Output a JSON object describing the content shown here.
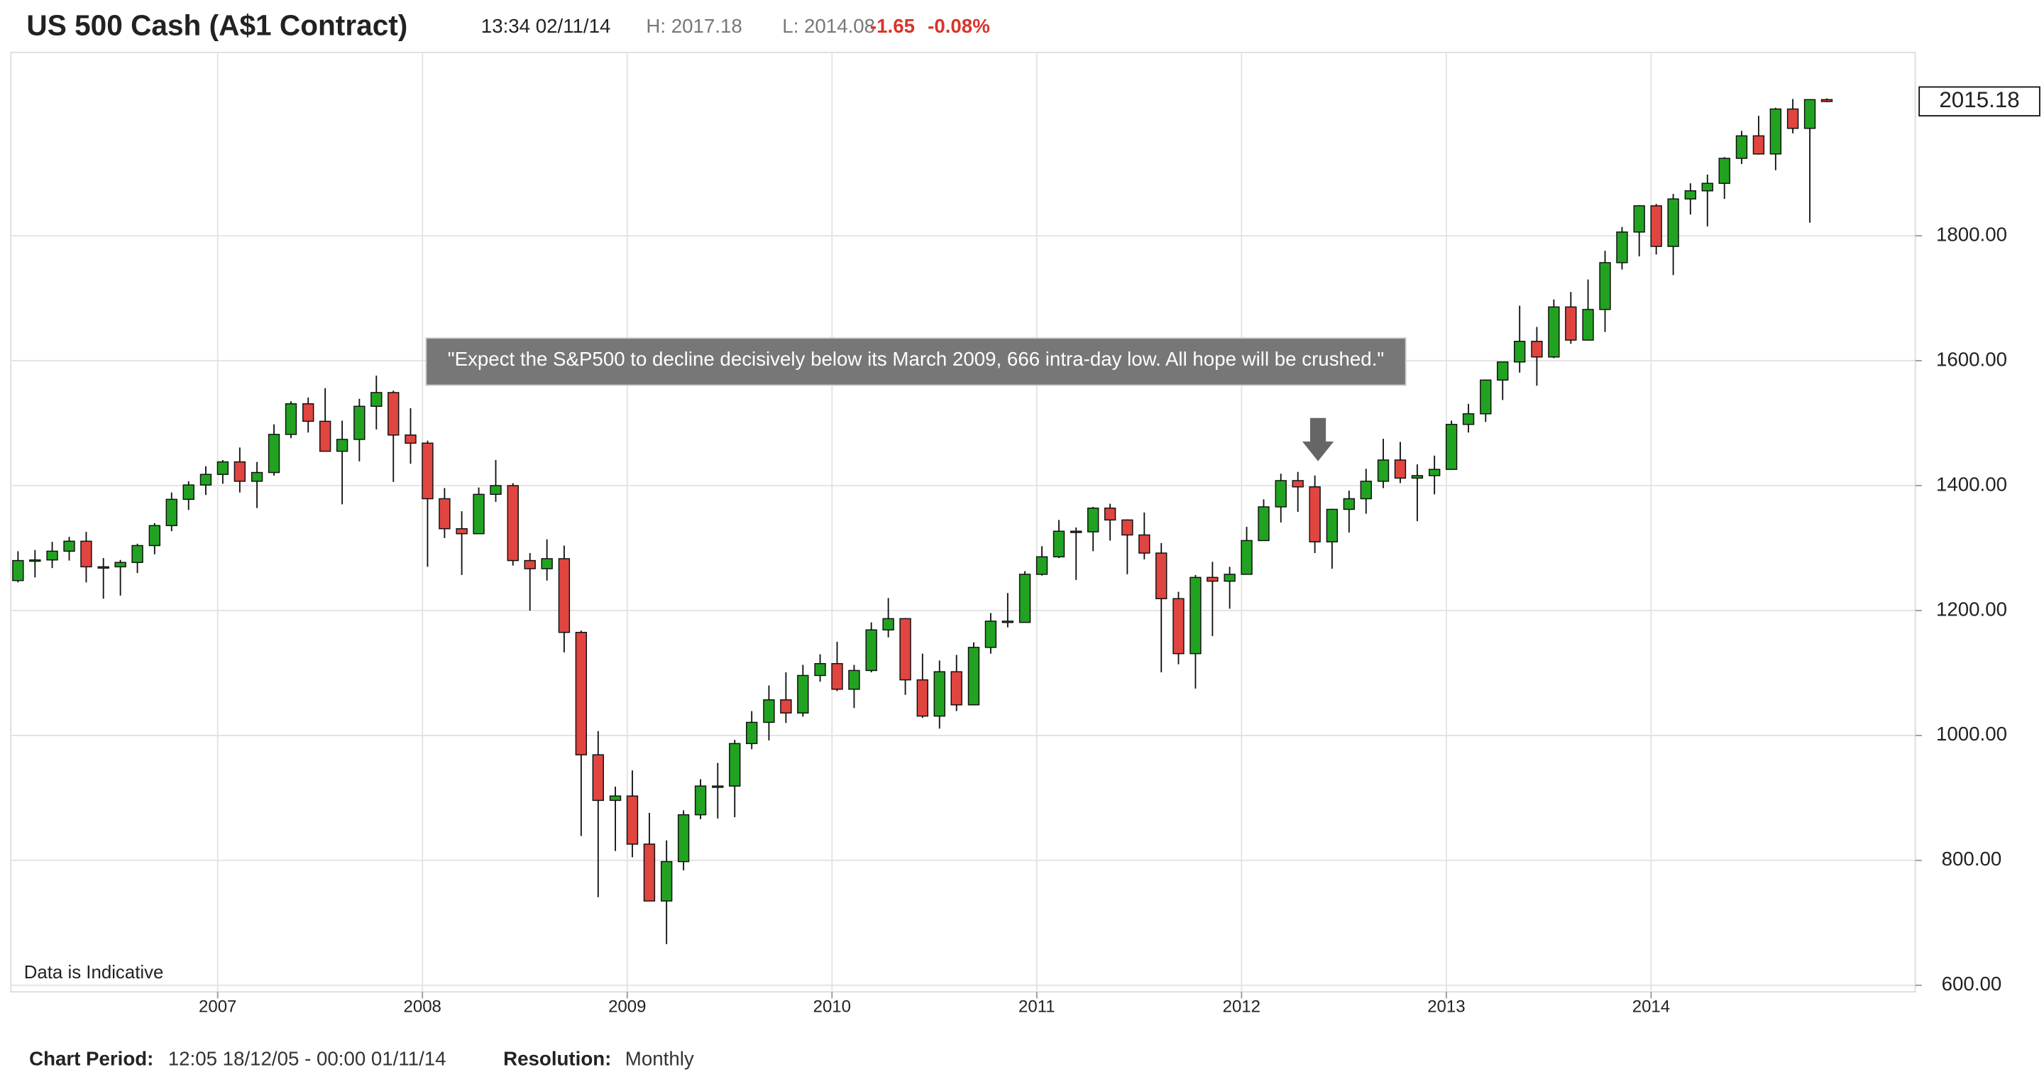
{
  "header": {
    "title": "US 500 Cash (A$1 Contract)",
    "time": "13:34 02/11/14",
    "high": "H: 2017.18",
    "low": "L: 2014.08",
    "change": "-1.65",
    "change_pct": "-0.08%"
  },
  "chart_data": {
    "type": "candlestick",
    "note": "Data is Indicative",
    "annotation": "\"Expect the S&P500 to decline decisively below its March 2009, 666 intra-day low. All hope will be crushed.\"",
    "last_price": 2015.18,
    "up_color": "#21a321",
    "down_color": "#e04540",
    "grid": true,
    "xlim": [
      2005.99,
      2015.29
    ],
    "xticks": [
      2007,
      2008,
      2009,
      2010,
      2011,
      2012,
      2013,
      2014
    ],
    "ylim": [
      589.5,
      2093.6
    ],
    "yticks": [
      {
        "value": 600,
        "label": "600.00"
      },
      {
        "value": 800,
        "label": "800.00"
      },
      {
        "value": 1000,
        "label": "1000.00"
      },
      {
        "value": 1200,
        "label": "1200.00"
      },
      {
        "value": 1400,
        "label": "1400.00"
      },
      {
        "value": 1600,
        "label": "1600.00"
      },
      {
        "value": 1800,
        "label": "1800.00"
      }
    ],
    "x": [
      2006.025,
      2006.108,
      2006.192,
      2006.275,
      2006.358,
      2006.442,
      2006.525,
      2006.608,
      2006.692,
      2006.775,
      2006.858,
      2006.942,
      2007.025,
      2007.108,
      2007.192,
      2007.275,
      2007.358,
      2007.442,
      2007.525,
      2007.608,
      2007.692,
      2007.775,
      2007.858,
      2007.942,
      2008.025,
      2008.108,
      2008.192,
      2008.275,
      2008.358,
      2008.442,
      2008.525,
      2008.608,
      2008.692,
      2008.775,
      2008.858,
      2008.942,
      2009.025,
      2009.108,
      2009.192,
      2009.275,
      2009.358,
      2009.442,
      2009.525,
      2009.608,
      2009.692,
      2009.775,
      2009.858,
      2009.942,
      2010.025,
      2010.108,
      2010.192,
      2010.275,
      2010.358,
      2010.442,
      2010.525,
      2010.608,
      2010.692,
      2010.775,
      2010.858,
      2010.942,
      2011.025,
      2011.108,
      2011.192,
      2011.275,
      2011.358,
      2011.442,
      2011.525,
      2011.608,
      2011.692,
      2011.775,
      2011.858,
      2011.942,
      2012.025,
      2012.108,
      2012.192,
      2012.275,
      2012.358,
      2012.442,
      2012.525,
      2012.608,
      2012.692,
      2012.775,
      2012.858,
      2012.942,
      2013.025,
      2013.108,
      2013.192,
      2013.275,
      2013.358,
      2013.442,
      2013.525,
      2013.608,
      2013.692,
      2013.775,
      2013.858,
      2013.942,
      2014.025,
      2014.108,
      2014.192,
      2014.275,
      2014.358,
      2014.442,
      2014.525,
      2014.608,
      2014.692,
      2014.775,
      2014.858
    ],
    "open": [
      1248,
      1280,
      1281,
      1295,
      1311,
      1270,
      1270,
      1277,
      1304,
      1336,
      1378,
      1401,
      1418,
      1438,
      1407,
      1421,
      1482,
      1531,
      1503,
      1455,
      1474,
      1527,
      1549,
      1481,
      1468,
      1379,
      1331,
      1323,
      1386,
      1400,
      1280,
      1267,
      1283,
      1165,
      969,
      896,
      903,
      826,
      735,
      798,
      873,
      919,
      919,
      987,
      1021,
      1057,
      1036,
      1096,
      1115,
      1074,
      1104,
      1169,
      1187,
      1089,
      1031,
      1102,
      1049,
      1141,
      1183,
      1181,
      1258,
      1286,
      1327,
      1326,
      1364,
      1345,
      1321,
      1292,
      1219,
      1131,
      1253,
      1247,
      1258,
      1312,
      1366,
      1408,
      1398,
      1310,
      1362,
      1379,
      1407,
      1441,
      1412,
      1416,
      1426,
      1498,
      1515,
      1569,
      1598,
      1631,
      1606,
      1686,
      1633,
      1682,
      1757,
      1806,
      1848,
      1783,
      1859,
      1872,
      1884,
      1924,
      1960,
      1931,
      2003,
      1972,
      2018
    ],
    "high": [
      1295,
      1297,
      1310,
      1318,
      1326,
      1284,
      1281,
      1307,
      1340,
      1389,
      1407,
      1431,
      1441,
      1461,
      1438,
      1498,
      1535,
      1541,
      1556,
      1504,
      1539,
      1576,
      1552,
      1524,
      1472,
      1396,
      1359,
      1397,
      1441,
      1404,
      1292,
      1314,
      1304,
      1168,
      1007,
      918,
      944,
      876,
      832,
      880,
      930,
      956,
      993,
      1039,
      1080,
      1101,
      1113,
      1130,
      1150,
      1113,
      1181,
      1220,
      1188,
      1131,
      1120,
      1129,
      1149,
      1196,
      1228,
      1263,
      1303,
      1345,
      1333,
      1366,
      1371,
      1346,
      1357,
      1308,
      1230,
      1257,
      1278,
      1270,
      1334,
      1378,
      1419,
      1422,
      1416,
      1363,
      1392,
      1427,
      1475,
      1470,
      1434,
      1448,
      1504,
      1531,
      1570,
      1598,
      1688,
      1654,
      1698,
      1710,
      1730,
      1776,
      1814,
      1849,
      1851,
      1867,
      1884,
      1898,
      1926,
      1968,
      1992,
      2005,
      2019,
      2018,
      2020
    ],
    "low": [
      1245,
      1253,
      1268,
      1280,
      1245,
      1219,
      1224,
      1260,
      1290,
      1327,
      1361,
      1385,
      1403,
      1389,
      1364,
      1416,
      1476,
      1485,
      1455,
      1370,
      1439,
      1490,
      1406,
      1435,
      1270,
      1316,
      1257,
      1323,
      1374,
      1272,
      1200,
      1248,
      1133,
      839,
      741,
      815,
      805,
      735,
      666,
      784,
      866,
      867,
      869,
      978,
      992,
      1020,
      1030,
      1086,
      1071,
      1044,
      1101,
      1157,
      1065,
      1028,
      1011,
      1039,
      1049,
      1131,
      1173,
      1181,
      1256,
      1284,
      1249,
      1295,
      1312,
      1258,
      1282,
      1101,
      1114,
      1075,
      1159,
      1203,
      1258,
      1312,
      1341,
      1358,
      1292,
      1267,
      1325,
      1355,
      1396,
      1404,
      1343,
      1386,
      1426,
      1485,
      1502,
      1537,
      1581,
      1560,
      1604,
      1627,
      1633,
      1646,
      1746,
      1767,
      1770,
      1737,
      1834,
      1815,
      1859,
      1915,
      1930,
      1905,
      1964,
      1821,
      2014
    ],
    "close": [
      1280,
      1281,
      1295,
      1311,
      1270,
      1270,
      1277,
      1304,
      1336,
      1378,
      1401,
      1418,
      1438,
      1407,
      1421,
      1482,
      1531,
      1503,
      1455,
      1474,
      1527,
      1549,
      1481,
      1468,
      1379,
      1331,
      1323,
      1386,
      1400,
      1280,
      1267,
      1283,
      1165,
      969,
      896,
      903,
      826,
      735,
      798,
      873,
      919,
      919,
      987,
      1021,
      1057,
      1036,
      1096,
      1115,
      1074,
      1104,
      1169,
      1187,
      1089,
      1031,
      1102,
      1049,
      1141,
      1183,
      1181,
      1258,
      1286,
      1327,
      1326,
      1364,
      1345,
      1321,
      1292,
      1219,
      1131,
      1253,
      1247,
      1258,
      1312,
      1366,
      1408,
      1398,
      1310,
      1362,
      1379,
      1407,
      1441,
      1412,
      1416,
      1426,
      1498,
      1515,
      1569,
      1598,
      1631,
      1606,
      1686,
      1633,
      1682,
      1757,
      1806,
      1848,
      1783,
      1859,
      1872,
      1884,
      1924,
      1960,
      1931,
      2003,
      1972,
      2018,
      2015
    ]
  },
  "footer": {
    "period_label": "Chart Period:",
    "period": "12:05 18/12/05 - 00:00 01/11/14",
    "resolution_label": "Resolution:",
    "resolution": "Monthly"
  }
}
